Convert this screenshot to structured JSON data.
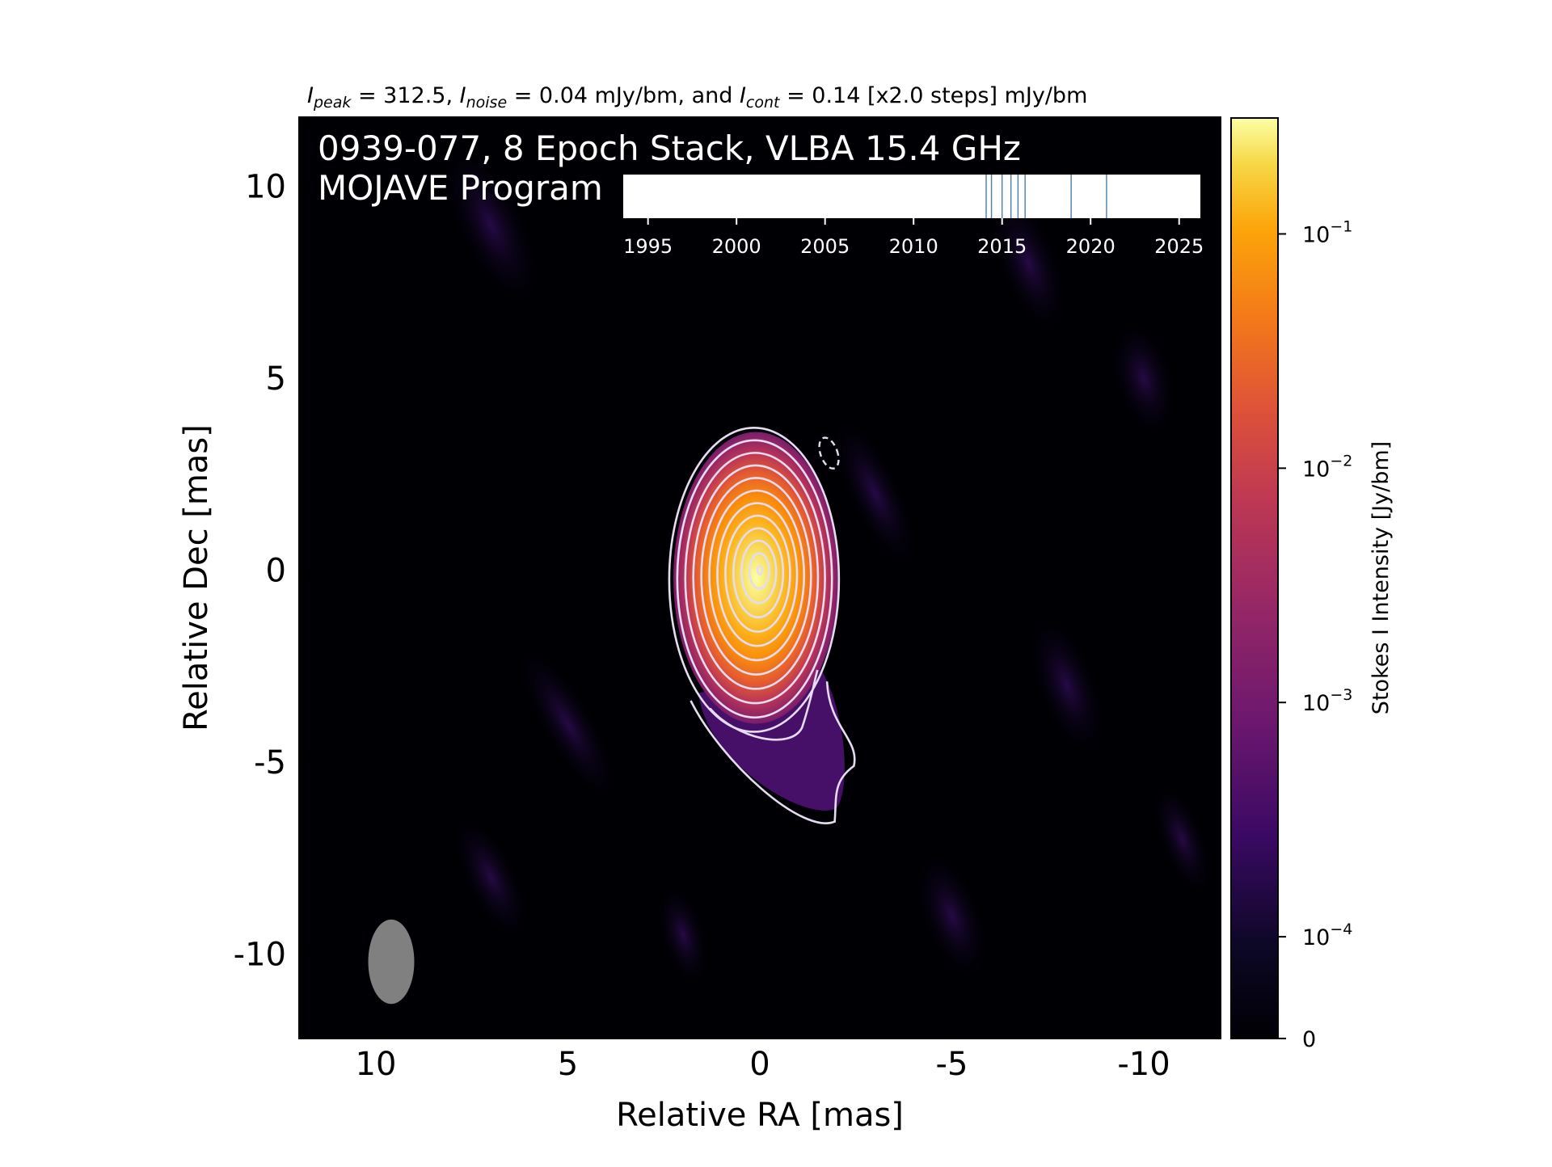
{
  "chart_data": {
    "type": "heatmap",
    "subtitle_parts": {
      "peak_sub": "peak",
      "peak_value": " = 312.5, ",
      "noise_sub": "noise",
      "noise_value": " = 0.04 mJy/bm, and ",
      "cont_sub": "cont",
      "cont_value": " = 0.14 [x2.0 steps] mJy/bm"
    },
    "title_line1": "0939-077, 8 Epoch Stack, VLBA 15.4 GHz",
    "title_line2": "MOJAVE Program",
    "xlabel": "Relative RA [mas]",
    "ylabel": "Relative Dec [mas]",
    "xlim": [
      12,
      -12
    ],
    "ylim": [
      -12.2,
      11.8
    ],
    "x_ticks": [
      {
        "value": 10,
        "label": "10"
      },
      {
        "value": 5,
        "label": "5"
      },
      {
        "value": 0,
        "label": "0"
      },
      {
        "value": -5,
        "label": "-5"
      },
      {
        "value": -10,
        "label": "-10"
      }
    ],
    "y_ticks": [
      {
        "value": 10,
        "label": "10"
      },
      {
        "value": 5,
        "label": "5"
      },
      {
        "value": 0,
        "label": "0"
      },
      {
        "value": -5,
        "label": "-5"
      },
      {
        "value": -10,
        "label": "-10"
      }
    ],
    "peak_position": [
      0,
      0
    ],
    "beam": {
      "x": 9.6,
      "y": -10.2,
      "major_mas": 2.2,
      "minor_mas": 1.2,
      "pa_deg": 0
    },
    "contour_levels_mJy_per_bm": [
      0.14,
      0.28,
      0.56,
      1.12,
      2.24,
      4.48,
      8.96,
      17.92,
      35.84,
      71.68,
      143.36,
      286.72
    ],
    "colorbar": {
      "label": "Stokes I Intensity [Jy/bm]",
      "scale": "symlog",
      "range": [
        0,
        0.3125
      ],
      "ticks": [
        {
          "value": 0,
          "base": "0",
          "exp": ""
        },
        {
          "value": 0.0001,
          "base": "10",
          "exp": "−4"
        },
        {
          "value": 0.001,
          "base": "10",
          "exp": "−3"
        },
        {
          "value": 0.01,
          "base": "10",
          "exp": "−2"
        },
        {
          "value": 0.1,
          "base": "10",
          "exp": "−1"
        }
      ]
    },
    "epoch_timeline": {
      "range": [
        1993.6,
        2026.2
      ],
      "ticks": [
        {
          "value": 1995,
          "label": "1995"
        },
        {
          "value": 2000,
          "label": "2000"
        },
        {
          "value": 2005,
          "label": "2005"
        },
        {
          "value": 2010,
          "label": "2010"
        },
        {
          "value": 2015,
          "label": "2015"
        },
        {
          "value": 2020,
          "label": "2020"
        },
        {
          "value": 2025,
          "label": "2025"
        }
      ],
      "epochs": [
        2014.1,
        2014.4,
        2015.0,
        2015.5,
        2015.9,
        2016.3,
        2018.9,
        2020.9
      ]
    },
    "colors": {
      "background": "#000004",
      "contour": "#e6dcf2",
      "beam": "#808080",
      "epoch_line": "#4a7fa8"
    }
  }
}
